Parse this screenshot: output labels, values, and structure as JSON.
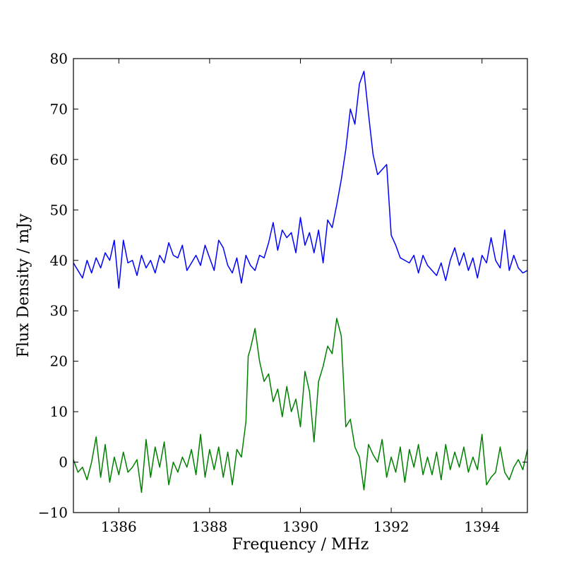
{
  "chart_data": {
    "type": "line",
    "xlabel": "Frequency / MHz",
    "ylabel": "Flux Density / mJy",
    "xlim": [
      1385,
      1395
    ],
    "ylim": [
      -10,
      80
    ],
    "xticks": [
      "1386",
      "1388",
      "1390",
      "1392",
      "1394"
    ],
    "yticks": [
      "−10",
      "0",
      "10",
      "20",
      "30",
      "40",
      "50",
      "60",
      "70",
      "80"
    ],
    "xtick_values": [
      1386,
      1388,
      1390,
      1392,
      1394
    ],
    "ytick_values": [
      -10,
      0,
      10,
      20,
      30,
      40,
      50,
      60,
      70,
      80
    ],
    "grid": false,
    "series": [
      {
        "color": "#0000ff",
        "x": [
          1385.0,
          1385.1,
          1385.2,
          1385.3,
          1385.4,
          1385.5,
          1385.6,
          1385.7,
          1385.8,
          1385.9,
          1386.0,
          1386.1,
          1386.2,
          1386.3,
          1386.4,
          1386.5,
          1386.6,
          1386.7,
          1386.8,
          1386.9,
          1387.0,
          1387.1,
          1387.2,
          1387.3,
          1387.4,
          1387.5,
          1387.6,
          1387.7,
          1387.8,
          1387.9,
          1388.0,
          1388.1,
          1388.2,
          1388.3,
          1388.4,
          1388.5,
          1388.6,
          1388.7,
          1388.8,
          1388.9,
          1389.0,
          1389.1,
          1389.2,
          1389.3,
          1389.4,
          1389.5,
          1389.6,
          1389.7,
          1389.8,
          1389.9,
          1390.0,
          1390.1,
          1390.2,
          1390.3,
          1390.4,
          1390.5,
          1390.6,
          1390.7,
          1390.8,
          1390.9,
          1391.0,
          1391.1,
          1391.2,
          1391.3,
          1391.4,
          1391.5,
          1391.6,
          1391.7,
          1391.8,
          1391.9,
          1392.0,
          1392.1,
          1392.2,
          1392.3,
          1392.4,
          1392.5,
          1392.6,
          1392.7,
          1392.8,
          1392.9,
          1393.0,
          1393.1,
          1393.2,
          1393.3,
          1393.4,
          1393.5,
          1393.6,
          1393.7,
          1393.8,
          1393.9,
          1394.0,
          1394.1,
          1394.2,
          1394.3,
          1394.4,
          1394.5,
          1394.6,
          1394.7,
          1394.8,
          1394.9,
          1395.0
        ],
        "values": [
          39.5,
          38.0,
          36.5,
          40.0,
          37.5,
          40.5,
          38.5,
          41.5,
          40.0,
          44.0,
          34.5,
          44.0,
          39.5,
          40.0,
          37.0,
          41.0,
          38.5,
          40.0,
          37.5,
          41.0,
          39.5,
          43.5,
          41.0,
          40.5,
          43.0,
          38.0,
          39.5,
          41.0,
          39.0,
          43.0,
          40.5,
          38.0,
          44.0,
          42.5,
          39.0,
          37.5,
          40.5,
          35.5,
          41.0,
          39.0,
          38.0,
          41.0,
          40.5,
          43.5,
          47.5,
          42.0,
          46.0,
          44.5,
          45.5,
          41.5,
          48.5,
          43.0,
          45.5,
          41.5,
          46.0,
          39.5,
          48.0,
          46.5,
          51.0,
          56.0,
          62.0,
          70.0,
          67.0,
          75.0,
          77.5,
          69.0,
          61.0,
          57.0,
          58.0,
          59.0,
          45.0,
          43.0,
          40.5,
          40.0,
          39.5,
          41.0,
          37.5,
          41.0,
          39.0,
          38.0,
          37.0,
          39.5,
          36.0,
          40.0,
          42.5,
          39.0,
          41.5,
          38.0,
          40.5,
          36.5,
          41.0,
          39.5,
          44.5,
          40.0,
          38.5,
          46.0,
          38.0,
          41.0,
          38.5,
          37.5,
          38.0
        ]
      },
      {
        "color": "#008000",
        "x": [
          1385.0,
          1385.1,
          1385.2,
          1385.3,
          1385.4,
          1385.5,
          1385.6,
          1385.7,
          1385.8,
          1385.9,
          1386.0,
          1386.1,
          1386.2,
          1386.3,
          1386.4,
          1386.5,
          1386.6,
          1386.7,
          1386.8,
          1386.9,
          1387.0,
          1387.1,
          1387.2,
          1387.3,
          1387.4,
          1387.5,
          1387.6,
          1387.7,
          1387.8,
          1387.9,
          1388.0,
          1388.1,
          1388.2,
          1388.3,
          1388.4,
          1388.5,
          1388.6,
          1388.7,
          1388.8,
          1388.85,
          1388.9,
          1389.0,
          1389.1,
          1389.2,
          1389.3,
          1389.4,
          1389.5,
          1389.6,
          1389.7,
          1389.8,
          1389.9,
          1390.0,
          1390.1,
          1390.2,
          1390.3,
          1390.4,
          1390.5,
          1390.6,
          1390.7,
          1390.8,
          1390.9,
          1391.0,
          1391.1,
          1391.2,
          1391.3,
          1391.4,
          1391.5,
          1391.6,
          1391.7,
          1391.8,
          1391.9,
          1392.0,
          1392.1,
          1392.2,
          1392.3,
          1392.4,
          1392.5,
          1392.6,
          1392.7,
          1392.8,
          1392.9,
          1393.0,
          1393.1,
          1393.2,
          1393.3,
          1393.4,
          1393.5,
          1393.6,
          1393.7,
          1393.8,
          1393.9,
          1394.0,
          1394.1,
          1394.2,
          1394.3,
          1394.4,
          1394.5,
          1394.6,
          1394.7,
          1394.8,
          1394.9,
          1395.0
        ],
        "values": [
          0.5,
          -2.0,
          -1.0,
          -3.5,
          0.0,
          5.0,
          -3.0,
          3.5,
          -4.0,
          1.0,
          -2.5,
          2.0,
          -2.0,
          -1.0,
          0.5,
          -6.0,
          4.5,
          -3.0,
          3.0,
          -1.0,
          4.0,
          -4.5,
          0.0,
          -2.0,
          1.0,
          -1.0,
          2.5,
          -2.5,
          5.5,
          -3.0,
          2.5,
          -1.5,
          3.0,
          -3.0,
          2.0,
          -4.5,
          2.5,
          1.0,
          8.0,
          21.0,
          22.5,
          26.5,
          20.0,
          16.0,
          17.5,
          12.0,
          14.5,
          9.0,
          15.0,
          10.0,
          12.5,
          7.0,
          18.0,
          14.0,
          4.0,
          16.0,
          19.0,
          23.0,
          21.5,
          28.5,
          25.0,
          7.0,
          8.5,
          3.0,
          1.0,
          -5.5,
          3.5,
          1.5,
          0.0,
          4.5,
          -3.0,
          1.0,
          -2.0,
          3.0,
          -4.0,
          2.5,
          -1.0,
          3.5,
          -2.5,
          1.0,
          -2.5,
          2.0,
          -3.5,
          3.5,
          -1.5,
          2.0,
          -1.0,
          3.0,
          -2.0,
          1.0,
          -1.5,
          5.5,
          -4.5,
          -3.0,
          -2.0,
          3.0,
          -2.0,
          -3.5,
          -1.0,
          0.5,
          -1.5,
          2.5
        ]
      }
    ]
  }
}
